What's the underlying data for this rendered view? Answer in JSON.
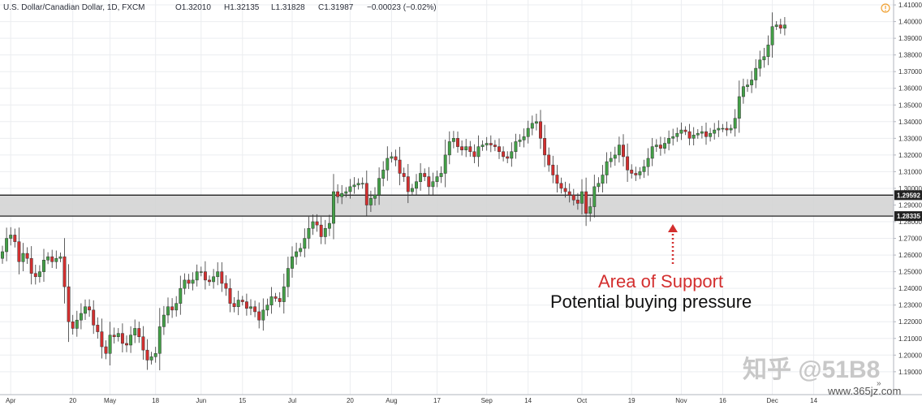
{
  "header": {
    "symbol": "U.S. Dollar/Canadian Dollar, 1D, FXCM",
    "open": "O1.32010",
    "high": "H1.32135",
    "low": "L1.31828",
    "close": "C1.31987",
    "change": "−0.00023 (−0.02%)"
  },
  "annotation": {
    "title": "Area of Support",
    "subtitle": "Potential buying pressure",
    "title_color": "#d32f2f"
  },
  "watermark": {
    "main": "知乎 @51B8",
    "site": "www.365jz.com"
  },
  "colors": {
    "up": "#43a047",
    "down": "#d32f2f",
    "zone_fill": "#d4d4d4",
    "zone_line": "#222222"
  },
  "chart_data": {
    "type": "candlestick",
    "title": "U.S. Dollar/Canadian Dollar, 1D, FXCM",
    "ylim": [
      1.187,
      1.411
    ],
    "y_ticks": [
      "1.41000",
      "1.40000",
      "1.39000",
      "1.38000",
      "1.37000",
      "1.36000",
      "1.35000",
      "1.34000",
      "1.33000",
      "1.32000",
      "1.31000",
      "1.30000",
      "1.29000",
      "1.28000",
      "1.27000",
      "1.26000",
      "1.25000",
      "1.24000",
      "1.23000",
      "1.22000",
      "1.21000",
      "1.20000",
      "1.19000"
    ],
    "x_ticks": [
      {
        "label": "Apr",
        "i": 2
      },
      {
        "label": "20",
        "i": 17
      },
      {
        "label": "May",
        "i": 26
      },
      {
        "label": "18",
        "i": 37
      },
      {
        "label": "Jun",
        "i": 48
      },
      {
        "label": "15",
        "i": 58
      },
      {
        "label": "Jul",
        "i": 70
      },
      {
        "label": "20",
        "i": 84
      },
      {
        "label": "Aug",
        "i": 94
      },
      {
        "label": "17",
        "i": 105
      },
      {
        "label": "Sep",
        "i": 117
      },
      {
        "label": "14",
        "i": 127
      },
      {
        "label": "Oct",
        "i": 140
      },
      {
        "label": "19",
        "i": 152
      },
      {
        "label": "Nov",
        "i": 164
      },
      {
        "label": "16",
        "i": 174
      },
      {
        "label": "Dec",
        "i": 186
      },
      {
        "label": "14",
        "i": 196
      }
    ],
    "support_zone": {
      "upper": 1.29592,
      "lower": 1.28335,
      "upper_label": "1.29592",
      "lower_label": "1.28335"
    },
    "closes": [
      1.262,
      1.27,
      1.272,
      1.268,
      1.256,
      1.261,
      1.258,
      1.249,
      1.247,
      1.25,
      1.257,
      1.259,
      1.256,
      1.258,
      1.259,
      1.241,
      1.22,
      1.216,
      1.221,
      1.225,
      1.229,
      1.227,
      1.218,
      1.214,
      1.205,
      1.201,
      1.212,
      1.211,
      1.213,
      1.207,
      1.206,
      1.212,
      1.216,
      1.211,
      1.203,
      1.197,
      1.199,
      1.201,
      1.217,
      1.224,
      1.229,
      1.227,
      1.231,
      1.24,
      1.245,
      1.243,
      1.245,
      1.25,
      1.25,
      1.245,
      1.244,
      1.247,
      1.25,
      1.243,
      1.24,
      1.231,
      1.229,
      1.233,
      1.232,
      1.228,
      1.229,
      1.226,
      1.221,
      1.227,
      1.23,
      1.235,
      1.234,
      1.232,
      1.241,
      1.252,
      1.259,
      1.262,
      1.264,
      1.27,
      1.276,
      1.28,
      1.278,
      1.271,
      1.276,
      1.279,
      1.298,
      1.295,
      1.297,
      1.298,
      1.301,
      1.302,
      1.303,
      1.303,
      1.29,
      1.294,
      1.296,
      1.306,
      1.311,
      1.318,
      1.319,
      1.317,
      1.309,
      1.307,
      1.298,
      1.3,
      1.304,
      1.309,
      1.307,
      1.301,
      1.304,
      1.307,
      1.309,
      1.32,
      1.328,
      1.33,
      1.325,
      1.323,
      1.325,
      1.322,
      1.319,
      1.325,
      1.326,
      1.327,
      1.326,
      1.325,
      1.322,
      1.319,
      1.318,
      1.322,
      1.328,
      1.329,
      1.331,
      1.336,
      1.339,
      1.34,
      1.33,
      1.32,
      1.314,
      1.308,
      1.303,
      1.3,
      1.298,
      1.296,
      1.293,
      1.291,
      1.298,
      1.285,
      1.289,
      1.301,
      1.303,
      1.308,
      1.316,
      1.318,
      1.32,
      1.326,
      1.319,
      1.311,
      1.309,
      1.308,
      1.31,
      1.313,
      1.318,
      1.325,
      1.326,
      1.324,
      1.327,
      1.33,
      1.331,
      1.333,
      1.335,
      1.334,
      1.33,
      1.332,
      1.333,
      1.334,
      1.331,
      1.333,
      1.335,
      1.336,
      1.336,
      1.335,
      1.336,
      1.342,
      1.355,
      1.361,
      1.362,
      1.365,
      1.372,
      1.377,
      1.379,
      1.386,
      1.397,
      1.398,
      1.396,
      1.398
    ]
  }
}
